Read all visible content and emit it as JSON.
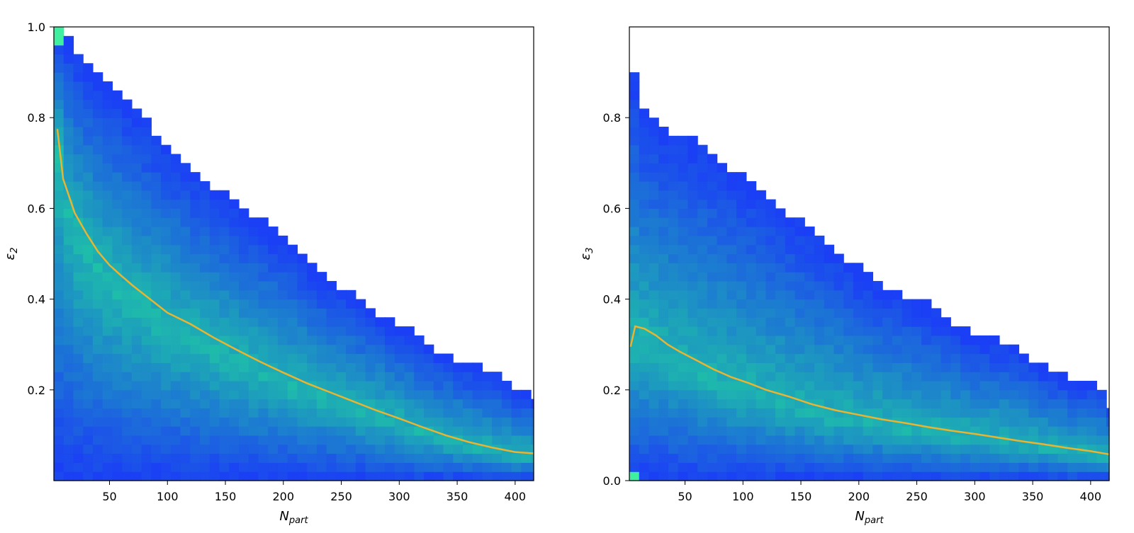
{
  "chart_data": [
    {
      "type": "heatmap",
      "title": "",
      "xlabel": "N",
      "xlabel_sub": "part",
      "ylabel": "ε",
      "ylabel_sub": "2",
      "xlim": [
        2,
        416
      ],
      "ylim": [
        0,
        1.0
      ],
      "xticks": [
        50,
        100,
        150,
        200,
        250,
        300,
        350,
        400
      ],
      "xtick_labels": [
        "50",
        "100",
        "150",
        "200",
        "250",
        "300",
        "350",
        "400"
      ],
      "yticks": [
        0.2,
        0.4,
        0.6,
        0.8,
        1.0
      ],
      "ytick_labels": [
        "0.2",
        "0.4",
        "0.6",
        "0.8",
        "1.0"
      ],
      "bin_width_x": 8.4,
      "bin_width_y": 0.02,
      "upper_envelope": {
        "x": [
          2,
          10,
          20,
          35,
          50,
          70,
          90,
          110,
          130,
          150,
          170,
          190,
          210,
          230,
          250,
          270,
          290,
          310,
          330,
          350,
          370,
          390,
          400,
          416
        ],
        "y": [
          1.0,
          0.98,
          0.94,
          0.9,
          0.86,
          0.82,
          0.76,
          0.71,
          0.66,
          0.62,
          0.58,
          0.55,
          0.5,
          0.45,
          0.42,
          0.38,
          0.35,
          0.32,
          0.28,
          0.26,
          0.24,
          0.22,
          0.2,
          0.18
        ]
      },
      "colormap": {
        "low": "#1b3ff5",
        "high": "#1ec0a8",
        "peak": "#3ff0a0"
      },
      "series": [
        {
          "type": "line",
          "color": "#e8b431",
          "x": [
            5,
            10,
            20,
            30,
            40,
            50,
            60,
            70,
            80,
            90,
            100,
            120,
            140,
            160,
            180,
            200,
            220,
            240,
            260,
            280,
            300,
            320,
            340,
            360,
            380,
            400,
            416
          ],
          "y": [
            0.775,
            0.665,
            0.59,
            0.545,
            0.505,
            0.475,
            0.452,
            0.43,
            0.41,
            0.39,
            0.37,
            0.345,
            0.315,
            0.288,
            0.262,
            0.238,
            0.215,
            0.195,
            0.175,
            0.155,
            0.137,
            0.118,
            0.1,
            0.085,
            0.073,
            0.063,
            0.06
          ]
        }
      ]
    },
    {
      "type": "heatmap",
      "title": "",
      "xlabel": "N",
      "xlabel_sub": "part",
      "ylabel": "ε",
      "ylabel_sub": "3",
      "xlim": [
        2,
        416
      ],
      "ylim": [
        0,
        1.0
      ],
      "xticks": [
        50,
        100,
        150,
        200,
        250,
        300,
        350,
        400
      ],
      "xtick_labels": [
        "50",
        "100",
        "150",
        "200",
        "250",
        "300",
        "350",
        "400"
      ],
      "yticks": [
        0.0,
        0.2,
        0.4,
        0.6,
        0.8
      ],
      "ytick_labels": [
        "0.0",
        "0.2",
        "0.4",
        "0.6",
        "0.8"
      ],
      "bin_width_x": 8.4,
      "bin_width_y": 0.02,
      "upper_envelope": {
        "x": [
          2,
          8,
          15,
          25,
          40,
          60,
          80,
          100,
          120,
          140,
          160,
          180,
          200,
          220,
          240,
          260,
          280,
          300,
          320,
          340,
          360,
          380,
          410,
          416
        ],
        "y": [
          1.0,
          0.84,
          0.8,
          0.78,
          0.76,
          0.74,
          0.7,
          0.66,
          0.62,
          0.58,
          0.54,
          0.5,
          0.46,
          0.42,
          0.4,
          0.38,
          0.34,
          0.31,
          0.3,
          0.28,
          0.24,
          0.22,
          0.2,
          0.16
        ]
      },
      "colormap": {
        "low": "#1b3ff5",
        "high": "#1ec0a8",
        "peak": "#3ff0a0"
      },
      "series": [
        {
          "type": "line",
          "color": "#e8b431",
          "x": [
            3,
            7,
            15,
            25,
            35,
            45,
            60,
            75,
            90,
            105,
            120,
            140,
            160,
            180,
            200,
            220,
            240,
            260,
            280,
            300,
            320,
            340,
            360,
            380,
            400,
            416
          ],
          "y": [
            0.295,
            0.34,
            0.335,
            0.32,
            0.3,
            0.285,
            0.265,
            0.245,
            0.228,
            0.215,
            0.2,
            0.185,
            0.168,
            0.155,
            0.145,
            0.135,
            0.127,
            0.118,
            0.11,
            0.103,
            0.095,
            0.087,
            0.08,
            0.072,
            0.065,
            0.058
          ]
        }
      ]
    }
  ]
}
